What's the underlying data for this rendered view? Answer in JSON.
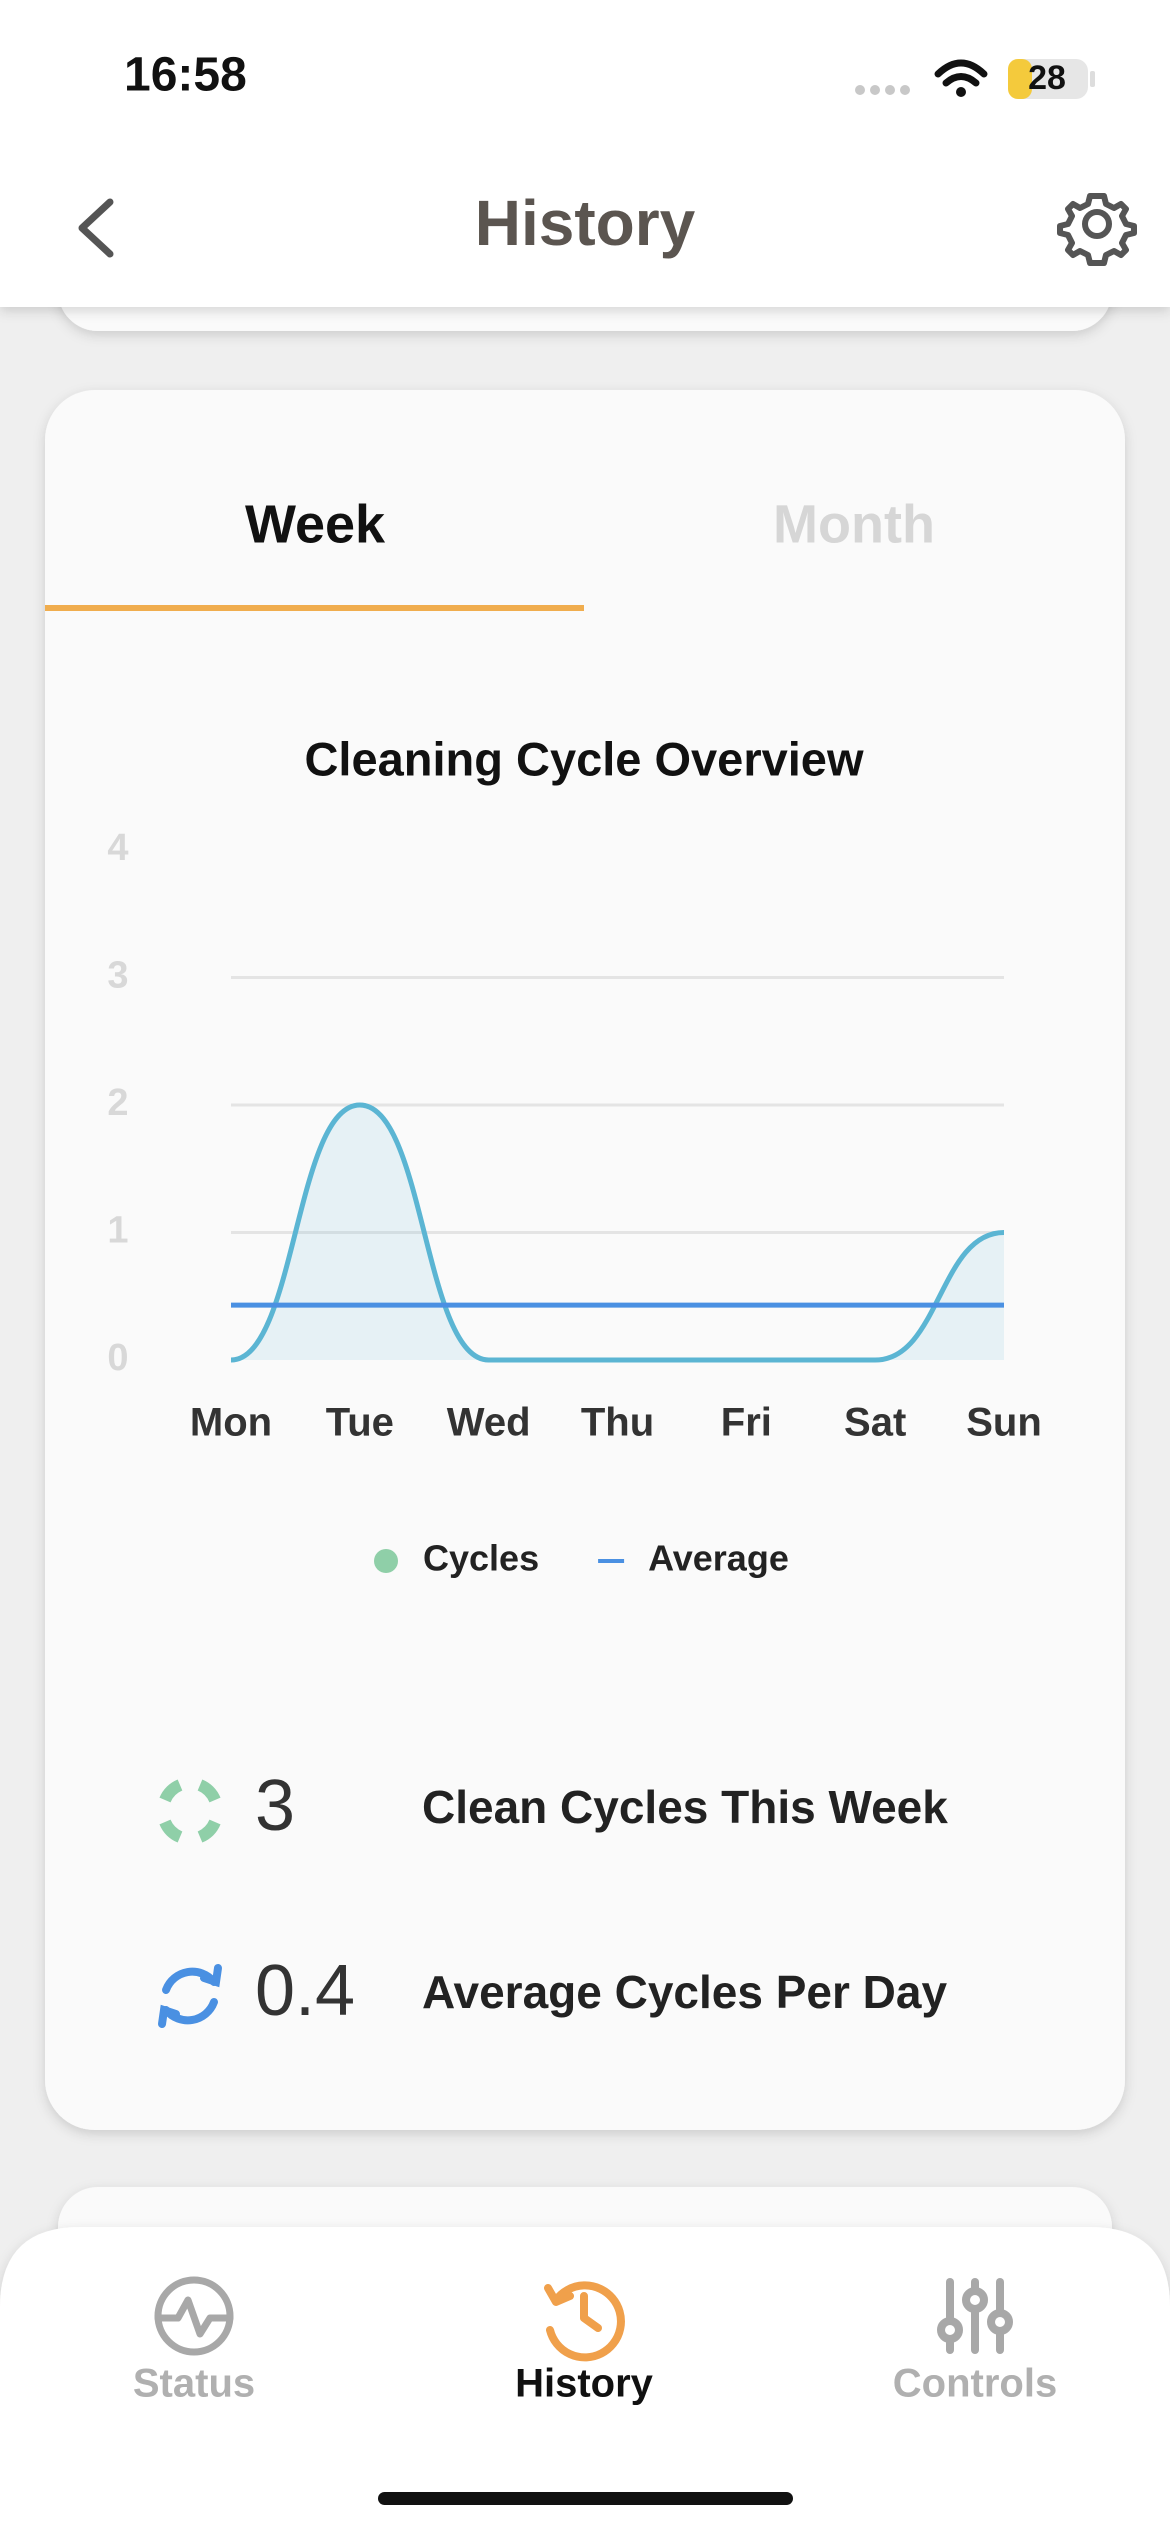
{
  "status_bar": {
    "time": "16:58",
    "battery": "28"
  },
  "header": {
    "title": "History"
  },
  "tabs": {
    "items": [
      "Week",
      "Month"
    ],
    "active": 0
  },
  "chart_data": {
    "type": "line",
    "title": "Cleaning Cycle Overview",
    "categories": [
      "Mon",
      "Tue",
      "Wed",
      "Thu",
      "Fri",
      "Sat",
      "Sun"
    ],
    "series": [
      {
        "name": "Cycles",
        "color": "#5bb5d3",
        "legend_color": "#8fcfa8",
        "values": [
          0,
          2,
          0,
          0,
          0,
          0,
          1
        ],
        "fill": true
      },
      {
        "name": "Average",
        "color": "#4a90e2",
        "values": [
          0.43,
          0.43,
          0.43,
          0.43,
          0.43,
          0.43,
          0.43
        ],
        "fill": false
      }
    ],
    "ylim": [
      0,
      4
    ],
    "yticks": [
      0,
      1,
      2,
      3,
      4
    ],
    "grid": true,
    "legend": "bottom"
  },
  "stats": [
    {
      "value": 3,
      "label": "Clean Cycles This Week"
    },
    {
      "value": 0.4,
      "label": "Average Cycles Per Day"
    }
  ],
  "tab_bar": {
    "items": [
      "Status",
      "History",
      "Controls"
    ],
    "active": 1
  }
}
